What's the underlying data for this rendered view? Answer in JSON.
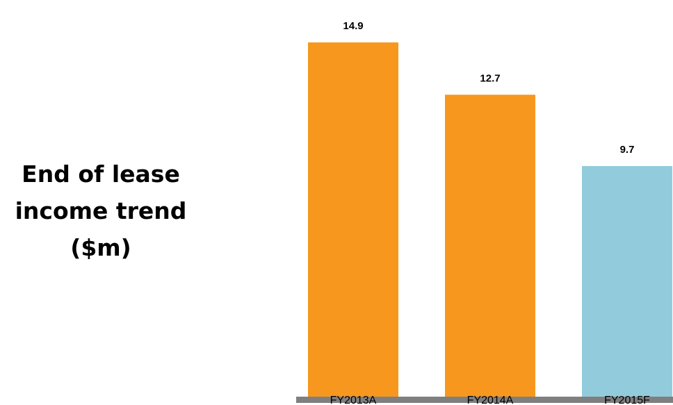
{
  "chart_data": {
    "type": "bar",
    "title": {
      "line1": "End of lease",
      "line2": "income trend",
      "line3": "($m)"
    },
    "xlabel": "",
    "ylabel": "",
    "categories": [
      "FY2013A",
      "FY2014A",
      "FY2015F"
    ],
    "values": [
      14.9,
      12.7,
      9.7
    ],
    "value_labels": [
      "14.9",
      "12.7",
      "9.7"
    ],
    "ylim": [
      0,
      16.1
    ],
    "grid": false,
    "legend": "none",
    "bar_colors": [
      "#f7971e",
      "#f7971e",
      "#92ccdc"
    ],
    "baseline_color": "#7f7f7f"
  }
}
